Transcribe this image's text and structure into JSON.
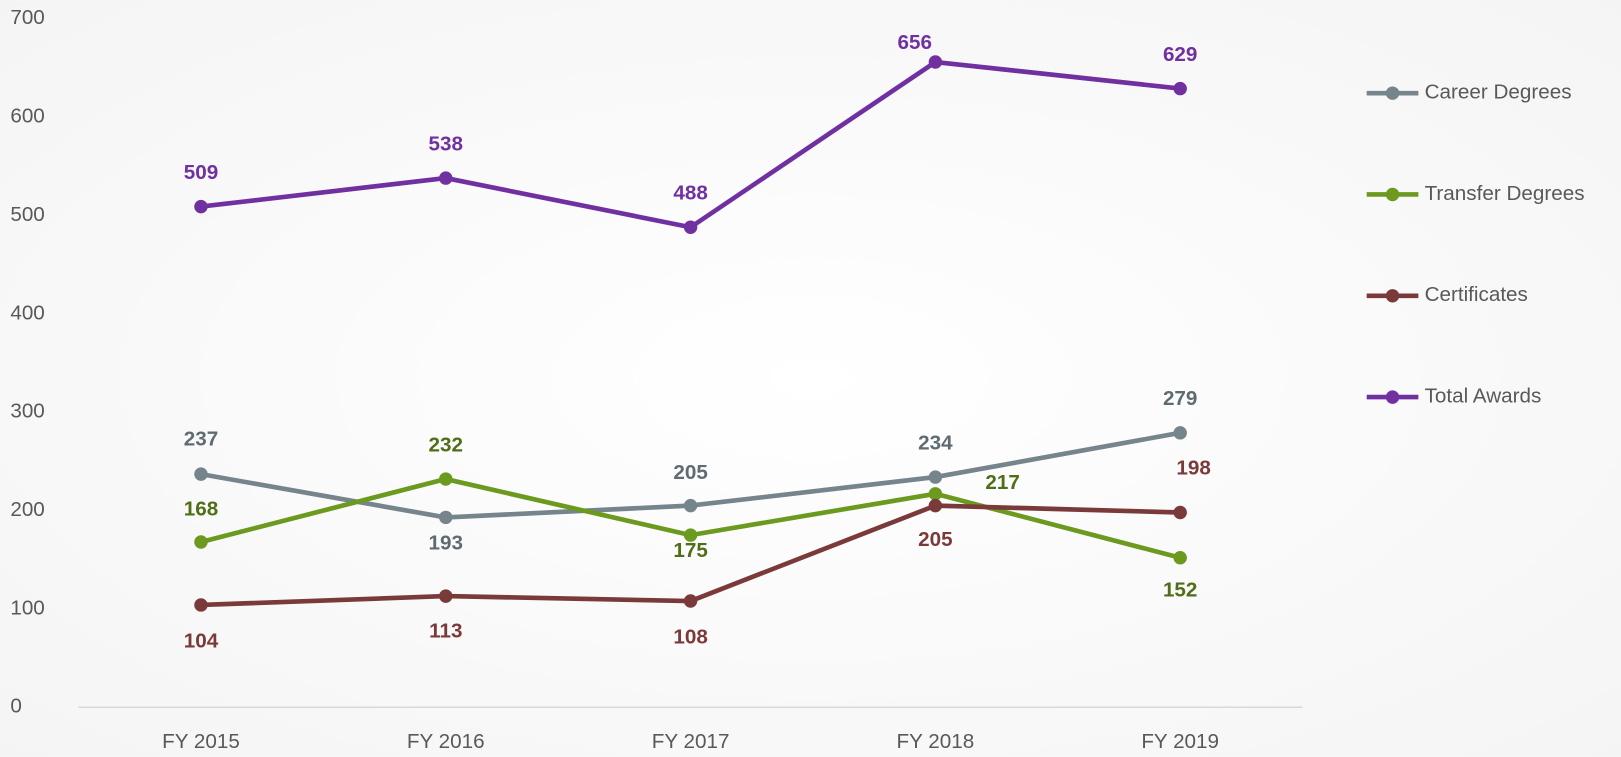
{
  "chart_data": {
    "type": "line",
    "categories": [
      "FY 2015",
      "FY 2016",
      "FY 2017",
      "FY 2018",
      "FY 2019"
    ],
    "series": [
      {
        "name": "Career Degrees",
        "color": "#76848c",
        "label_color": "#5f6b73",
        "values": [
          237,
          193,
          205,
          234,
          279
        ]
      },
      {
        "name": "Transfer Degrees",
        "color": "#6b9a1f",
        "label_color": "#4f6e17",
        "values": [
          168,
          232,
          175,
          217,
          152
        ]
      },
      {
        "name": "Certificates",
        "color": "#7b3a3a",
        "label_color": "#7b3a3a",
        "values": [
          104,
          113,
          108,
          205,
          198
        ]
      },
      {
        "name": "Total Awards",
        "color": "#7030a0",
        "label_color": "#7030a0",
        "values": [
          509,
          538,
          488,
          656,
          629
        ]
      }
    ],
    "ylim": [
      0,
      700
    ],
    "yticks": [
      0,
      100,
      200,
      300,
      400,
      500,
      600,
      700
    ],
    "grid": false,
    "legend": "right"
  }
}
